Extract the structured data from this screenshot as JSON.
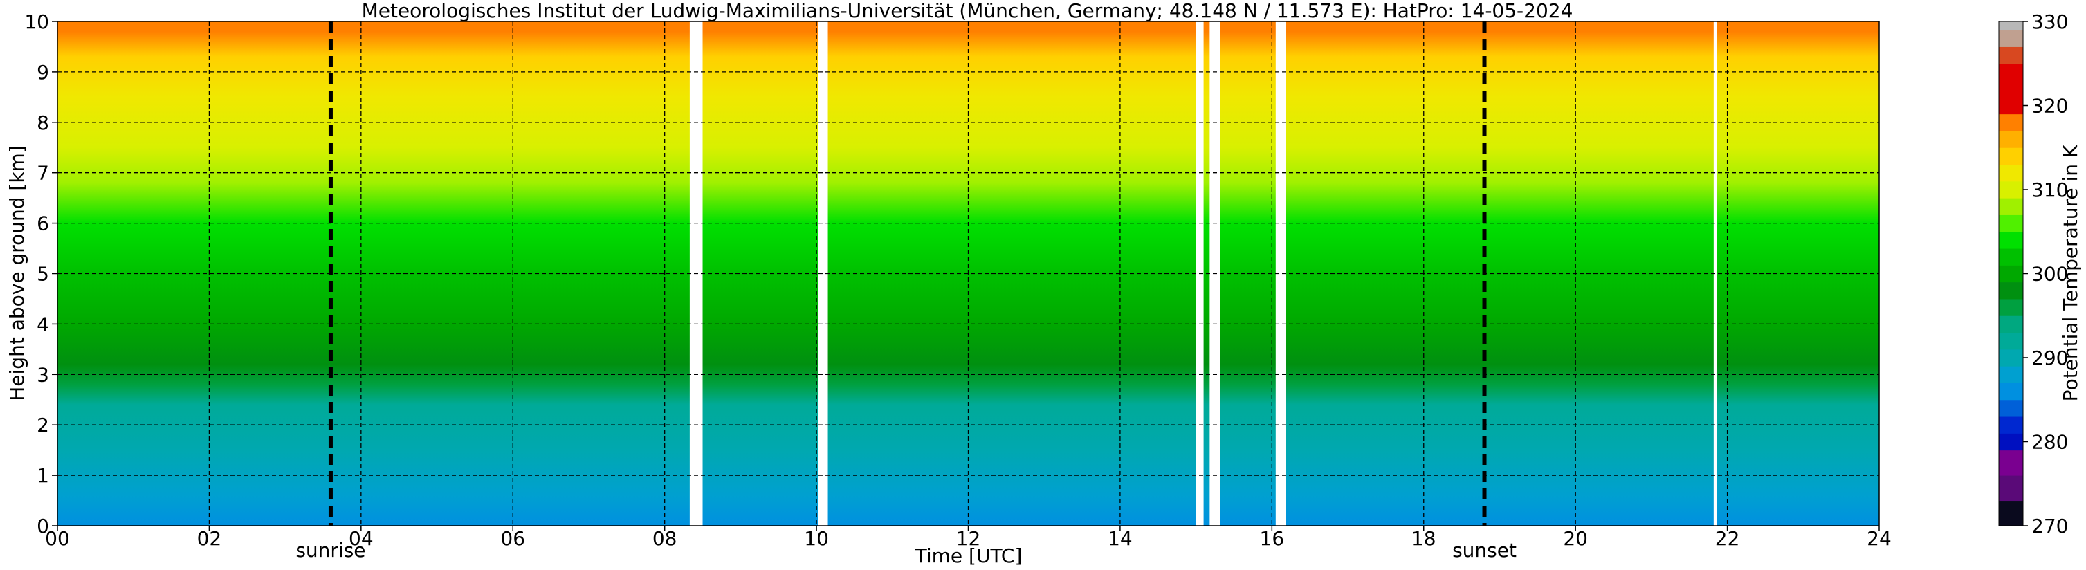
{
  "chart_data": {
    "type": "heatmap",
    "title": "Meteorologisches Institut der Ludwig-Maximilians-Universität (München, Germany; 48.148 N / 11.573 E):    HatPro: 14-05-2024",
    "xlabel": "Time [UTC]",
    "ylabel": "Height above ground [km]",
    "xlim": [
      0,
      24
    ],
    "ylim": [
      0,
      10
    ],
    "x_ticks": [
      0,
      2,
      4,
      6,
      8,
      10,
      12,
      14,
      16,
      18,
      20,
      22,
      24
    ],
    "x_tick_labels": [
      "00",
      "02",
      "04",
      "06",
      "08",
      "10",
      "12",
      "14",
      "16",
      "18",
      "20",
      "22",
      "24"
    ],
    "y_ticks": [
      0,
      1,
      2,
      3,
      4,
      5,
      6,
      7,
      8,
      9,
      10
    ],
    "y_tick_labels": [
      "0",
      "1",
      "2",
      "3",
      "4",
      "5",
      "6",
      "7",
      "8",
      "9",
      "10"
    ],
    "grid": true,
    "colorbar": {
      "label": "Potential Temperature in K",
      "min": 270,
      "max": 330,
      "ticks": [
        270,
        280,
        290,
        300,
        310,
        320,
        330
      ],
      "tick_labels": [
        "270",
        "280",
        "290",
        "300",
        "310",
        "320",
        "330"
      ],
      "colors": [
        {
          "from": 270,
          "to": 273,
          "color": "#0a0a1e"
        },
        {
          "from": 273,
          "to": 276,
          "color": "#5a0a78"
        },
        {
          "from": 276,
          "to": 279,
          "color": "#7a0090"
        },
        {
          "from": 279,
          "to": 281,
          "color": "#0010c0"
        },
        {
          "from": 281,
          "to": 283,
          "color": "#0028d0"
        },
        {
          "from": 283,
          "to": 285,
          "color": "#0060d8"
        },
        {
          "from": 285,
          "to": 287,
          "color": "#0090e0"
        },
        {
          "from": 287,
          "to": 289,
          "color": "#00a0d0"
        },
        {
          "from": 289,
          "to": 291,
          "color": "#00a8b0"
        },
        {
          "from": 291,
          "to": 293,
          "color": "#00aa98"
        },
        {
          "from": 293,
          "to": 295,
          "color": "#00a880"
        },
        {
          "from": 295,
          "to": 297,
          "color": "#00a040"
        },
        {
          "from": 297,
          "to": 299,
          "color": "#009010"
        },
        {
          "from": 299,
          "to": 301,
          "color": "#00a800"
        },
        {
          "from": 301,
          "to": 303,
          "color": "#00c000"
        },
        {
          "from": 303,
          "to": 305,
          "color": "#00e000"
        },
        {
          "from": 305,
          "to": 307,
          "color": "#50f000"
        },
        {
          "from": 307,
          "to": 309,
          "color": "#a0f000"
        },
        {
          "from": 309,
          "to": 311,
          "color": "#d8f000"
        },
        {
          "from": 311,
          "to": 313,
          "color": "#f0e800"
        },
        {
          "from": 313,
          "to": 315,
          "color": "#ffd000"
        },
        {
          "from": 315,
          "to": 317,
          "color": "#ffb000"
        },
        {
          "from": 317,
          "to": 319,
          "color": "#ff8000"
        },
        {
          "from": 319,
          "to": 325,
          "color": "#e00000"
        },
        {
          "from": 325,
          "to": 327,
          "color": "#d84820"
        },
        {
          "from": 327,
          "to": 329,
          "color": "#c0a090"
        },
        {
          "from": 329,
          "to": 330,
          "color": "#b8b8b8"
        }
      ]
    },
    "field_profile": [
      {
        "height_km": 0.0,
        "theta_K": 286
      },
      {
        "height_km": 0.6,
        "theta_K": 288
      },
      {
        "height_km": 1.5,
        "theta_K": 290
      },
      {
        "height_km": 2.4,
        "theta_K": 291
      },
      {
        "height_km": 2.8,
        "theta_K": 295
      },
      {
        "height_km": 3.2,
        "theta_K": 297
      },
      {
        "height_km": 4.0,
        "theta_K": 299
      },
      {
        "height_km": 5.0,
        "theta_K": 302
      },
      {
        "height_km": 6.0,
        "theta_K": 304
      },
      {
        "height_km": 6.8,
        "theta_K": 307
      },
      {
        "height_km": 7.5,
        "theta_K": 309
      },
      {
        "height_km": 8.5,
        "theta_K": 311
      },
      {
        "height_km": 9.3,
        "theta_K": 314
      },
      {
        "height_km": 9.8,
        "theta_K": 317
      },
      {
        "height_km": 10.0,
        "theta_K": 318
      }
    ],
    "data_gaps_hours": [
      [
        8.33,
        8.5
      ],
      [
        10.02,
        10.15
      ],
      [
        15.0,
        15.1
      ],
      [
        15.18,
        15.32
      ],
      [
        16.05,
        16.18
      ],
      [
        21.82,
        21.86
      ]
    ],
    "markers": [
      {
        "label": "sunrise",
        "time": 3.6
      },
      {
        "label": "sunset",
        "time": 18.8
      }
    ]
  }
}
